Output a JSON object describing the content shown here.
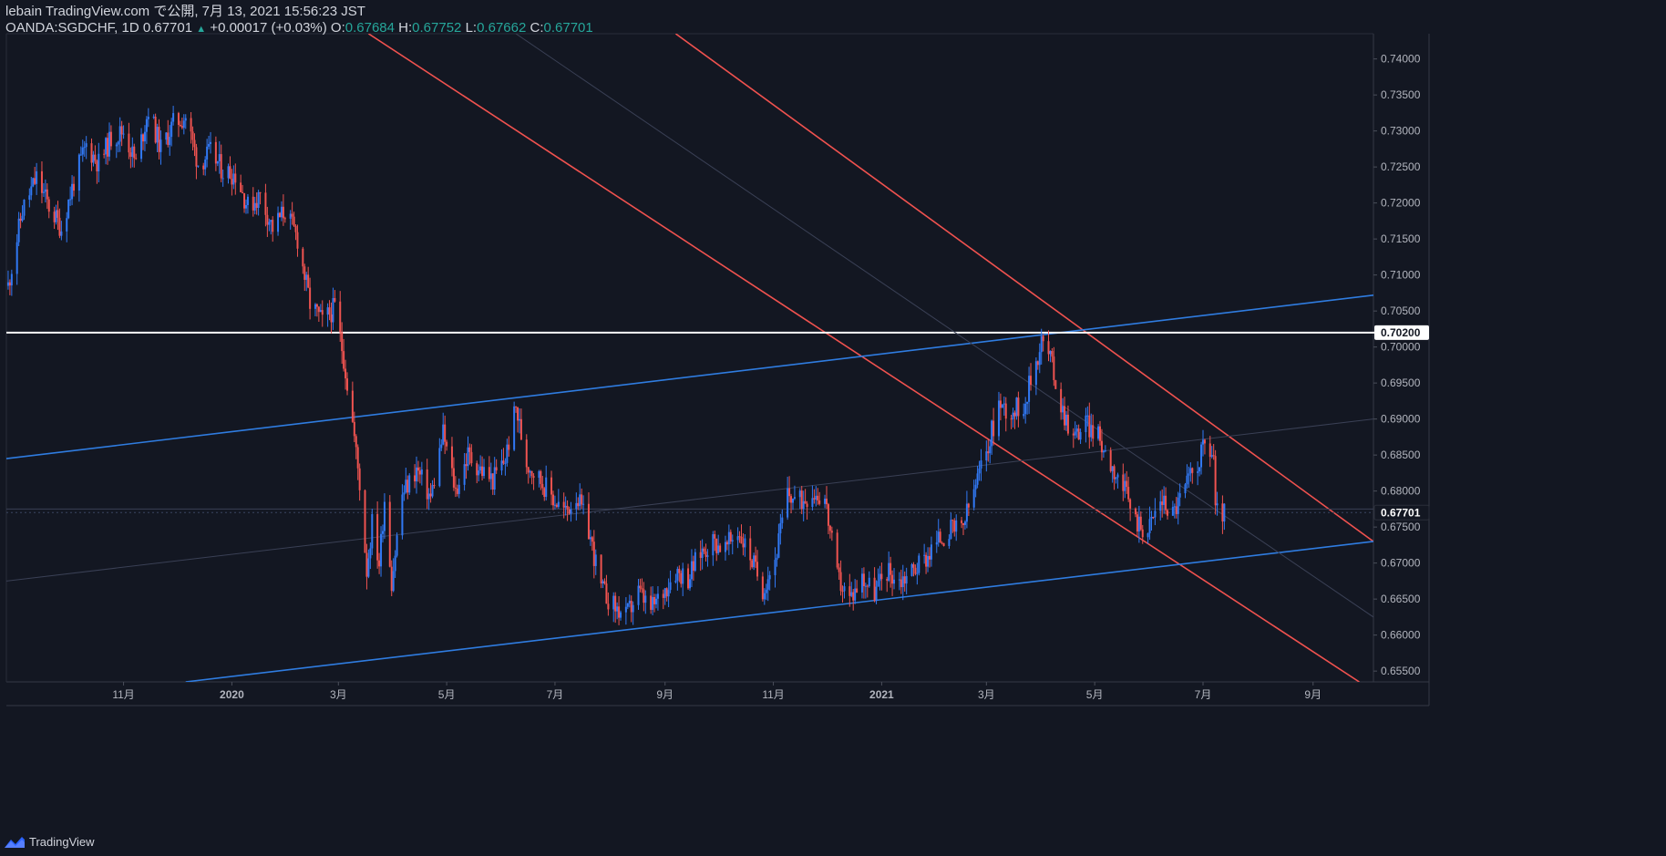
{
  "header": {
    "publish_line": "lebain TradingView.com で公開, 7月 13, 2021 15:56:23 JST",
    "symbol_line": "OANDA:SGDCHF, 1D 0.67701",
    "triangle": "▲",
    "change": "+0.00017 (+0.03%)",
    "o_label": "O:",
    "o_value": "0.67684",
    "h_label": "H:",
    "h_value": "0.67752",
    "l_label": "L:",
    "l_value": "0.67662",
    "c_label": "C:",
    "c_value": "0.67701"
  },
  "branding": {
    "label": "TradingView",
    "icon": "tradingview-logo-icon"
  },
  "colors": {
    "background": "#131722",
    "up": "#2962ff",
    "up_candle": "#3179f5",
    "down_candle": "#ef5350",
    "channel_red": "#f0524f",
    "channel_blue": "#2f7ce0",
    "level_line": "#ffffff",
    "axis_text": "#b2b5be"
  },
  "chart_data": {
    "type": "candlestick",
    "symbol": "OANDA:SGDCHF",
    "interval": "1D",
    "x_range": [
      "2019-08-27",
      "2021-10-05"
    ],
    "y_range": [
      0.6535,
      0.7435
    ],
    "x_tick_labels": [
      {
        "date": "2019-11-01",
        "label": "11月"
      },
      {
        "date": "2020-01-01",
        "label": "2020"
      },
      {
        "date": "2020-03-01",
        "label": "3月"
      },
      {
        "date": "2020-05-01",
        "label": "5月"
      },
      {
        "date": "2020-07-01",
        "label": "7月"
      },
      {
        "date": "2020-09-01",
        "label": "9月"
      },
      {
        "date": "2020-11-01",
        "label": "11月"
      },
      {
        "date": "2021-01-01",
        "label": "2021"
      },
      {
        "date": "2021-03-01",
        "label": "3月"
      },
      {
        "date": "2021-05-01",
        "label": "5月"
      },
      {
        "date": "2021-07-01",
        "label": "7月"
      },
      {
        "date": "2021-09-01",
        "label": "9月"
      }
    ],
    "y_tick_labels": [
      "0.74000",
      "0.73500",
      "0.73000",
      "0.72500",
      "0.72000",
      "0.71500",
      "0.71000",
      "0.70500",
      "0.70000",
      "0.69500",
      "0.69000",
      "0.68500",
      "0.68000",
      "0.67500",
      "0.67000",
      "0.66500",
      "0.66000",
      "0.65500"
    ],
    "price_tags": [
      {
        "value": 0.702,
        "label": "0.70200",
        "style": "level"
      },
      {
        "value": 0.67701,
        "label": "0.67701",
        "style": "last"
      }
    ],
    "close_path": [
      [
        "2019-08-28",
        0.7085
      ],
      [
        "2019-09-05",
        0.719
      ],
      [
        "2019-09-13",
        0.7235
      ],
      [
        "2019-09-20",
        0.7195
      ],
      [
        "2019-09-27",
        0.7165
      ],
      [
        "2019-10-04",
        0.723
      ],
      [
        "2019-10-11",
        0.728
      ],
      [
        "2019-10-18",
        0.7255
      ],
      [
        "2019-10-25",
        0.729
      ],
      [
        "2019-11-01",
        0.73
      ],
      [
        "2019-11-08",
        0.7255
      ],
      [
        "2019-11-15",
        0.733
      ],
      [
        "2019-11-22",
        0.7275
      ],
      [
        "2019-11-29",
        0.731
      ],
      [
        "2019-12-06",
        0.732
      ],
      [
        "2019-12-13",
        0.7255
      ],
      [
        "2019-12-20",
        0.727
      ],
      [
        "2019-12-27",
        0.7245
      ],
      [
        "2020-01-03",
        0.724
      ],
      [
        "2020-01-10",
        0.7195
      ],
      [
        "2020-01-17",
        0.721
      ],
      [
        "2020-01-24",
        0.7165
      ],
      [
        "2020-01-31",
        0.719
      ],
      [
        "2020-02-07",
        0.715
      ],
      [
        "2020-02-14",
        0.706
      ],
      [
        "2020-02-21",
        0.7035
      ],
      [
        "2020-02-28",
        0.7055
      ],
      [
        "2020-03-04",
        0.6985
      ],
      [
        "2020-03-09",
        0.6895
      ],
      [
        "2020-03-13",
        0.681
      ],
      [
        "2020-03-17",
        0.669
      ],
      [
        "2020-03-20",
        0.6755
      ],
      [
        "2020-03-24",
        0.67
      ],
      [
        "2020-03-27",
        0.679
      ],
      [
        "2020-03-31",
        0.6675
      ],
      [
        "2020-04-06",
        0.6795
      ],
      [
        "2020-04-14",
        0.683
      ],
      [
        "2020-04-22",
        0.679
      ],
      [
        "2020-04-29",
        0.688
      ],
      [
        "2020-05-06",
        0.68
      ],
      [
        "2020-05-13",
        0.685
      ],
      [
        "2020-05-20",
        0.683
      ],
      [
        "2020-05-27",
        0.6815
      ],
      [
        "2020-06-03",
        0.6845
      ],
      [
        "2020-06-09",
        0.6915
      ],
      [
        "2020-06-15",
        0.684
      ],
      [
        "2020-06-23",
        0.6815
      ],
      [
        "2020-06-30",
        0.679
      ],
      [
        "2020-07-07",
        0.677
      ],
      [
        "2020-07-13",
        0.6795
      ],
      [
        "2020-07-20",
        0.6745
      ],
      [
        "2020-07-27",
        0.6665
      ],
      [
        "2020-08-03",
        0.664
      ],
      [
        "2020-08-10",
        0.6625
      ],
      [
        "2020-08-17",
        0.666
      ],
      [
        "2020-08-24",
        0.6635
      ],
      [
        "2020-08-31",
        0.666
      ],
      [
        "2020-09-07",
        0.669
      ],
      [
        "2020-09-14",
        0.668
      ],
      [
        "2020-09-21",
        0.6715
      ],
      [
        "2020-09-28",
        0.673
      ],
      [
        "2020-10-05",
        0.672
      ],
      [
        "2020-10-12",
        0.6745
      ],
      [
        "2020-10-19",
        0.671
      ],
      [
        "2020-10-26",
        0.6665
      ],
      [
        "2020-11-02",
        0.6705
      ],
      [
        "2020-11-09",
        0.6795
      ],
      [
        "2020-11-16",
        0.6785
      ],
      [
        "2020-11-23",
        0.68
      ],
      [
        "2020-11-30",
        0.679
      ],
      [
        "2020-12-07",
        0.668
      ],
      [
        "2020-12-14",
        0.665
      ],
      [
        "2020-12-21",
        0.668
      ],
      [
        "2020-12-28",
        0.666
      ],
      [
        "2021-01-04",
        0.669
      ],
      [
        "2021-01-11",
        0.6675
      ],
      [
        "2021-01-18",
        0.669
      ],
      [
        "2021-01-25",
        0.6705
      ],
      [
        "2021-02-01",
        0.673
      ],
      [
        "2021-02-08",
        0.6745
      ],
      [
        "2021-02-15",
        0.6745
      ],
      [
        "2021-02-22",
        0.68
      ],
      [
        "2021-03-01",
        0.6855
      ],
      [
        "2021-03-08",
        0.692
      ],
      [
        "2021-03-15",
        0.691
      ],
      [
        "2021-03-22",
        0.692
      ],
      [
        "2021-03-29",
        0.698
      ],
      [
        "2021-04-01",
        0.701
      ],
      [
        "2021-04-06",
        0.6985
      ],
      [
        "2021-04-12",
        0.692
      ],
      [
        "2021-04-19",
        0.6875
      ],
      [
        "2021-04-26",
        0.6895
      ],
      [
        "2021-05-03",
        0.6875
      ],
      [
        "2021-05-10",
        0.684
      ],
      [
        "2021-05-17",
        0.6805
      ],
      [
        "2021-05-24",
        0.676
      ],
      [
        "2021-05-31",
        0.6745
      ],
      [
        "2021-06-07",
        0.679
      ],
      [
        "2021-06-14",
        0.677
      ],
      [
        "2021-06-21",
        0.6805
      ],
      [
        "2021-06-28",
        0.684
      ],
      [
        "2021-07-02",
        0.6865
      ],
      [
        "2021-07-07",
        0.685
      ],
      [
        "2021-07-08",
        0.677
      ],
      [
        "2021-07-13",
        0.67701
      ]
    ],
    "trend_lines": [
      {
        "kind": "ray",
        "color": "red",
        "points": [
          [
            "2020-03-18",
            0.7435
          ],
          [
            "2021-09-27",
            0.6535
          ]
        ]
      },
      {
        "kind": "ray",
        "color": "red",
        "points": [
          [
            "2020-09-07",
            0.7435
          ],
          [
            "2021-10-05",
            0.673
          ]
        ]
      },
      {
        "kind": "ray",
        "color": "blue",
        "points": [
          [
            "2019-08-27",
            0.6845
          ],
          [
            "2021-10-05",
            0.7072
          ]
        ]
      },
      {
        "kind": "ray",
        "color": "blue",
        "points": [
          [
            "2019-12-06",
            0.6535
          ],
          [
            "2021-10-05",
            0.673
          ]
        ]
      },
      {
        "kind": "horizontal",
        "color": "white",
        "value": 0.702
      },
      {
        "kind": "ray",
        "color": "faint",
        "points": [
          [
            "2020-06-09",
            0.7435
          ],
          [
            "2021-10-05",
            0.6625
          ]
        ]
      },
      {
        "kind": "ray",
        "color": "faint",
        "points": [
          [
            "2019-08-27",
            0.6675
          ],
          [
            "2021-10-05",
            0.69
          ]
        ]
      },
      {
        "kind": "ray",
        "color": "faint",
        "points": [
          [
            "2019-08-27",
            0.6775
          ],
          [
            "2021-10-05",
            0.6775
          ]
        ]
      }
    ]
  }
}
